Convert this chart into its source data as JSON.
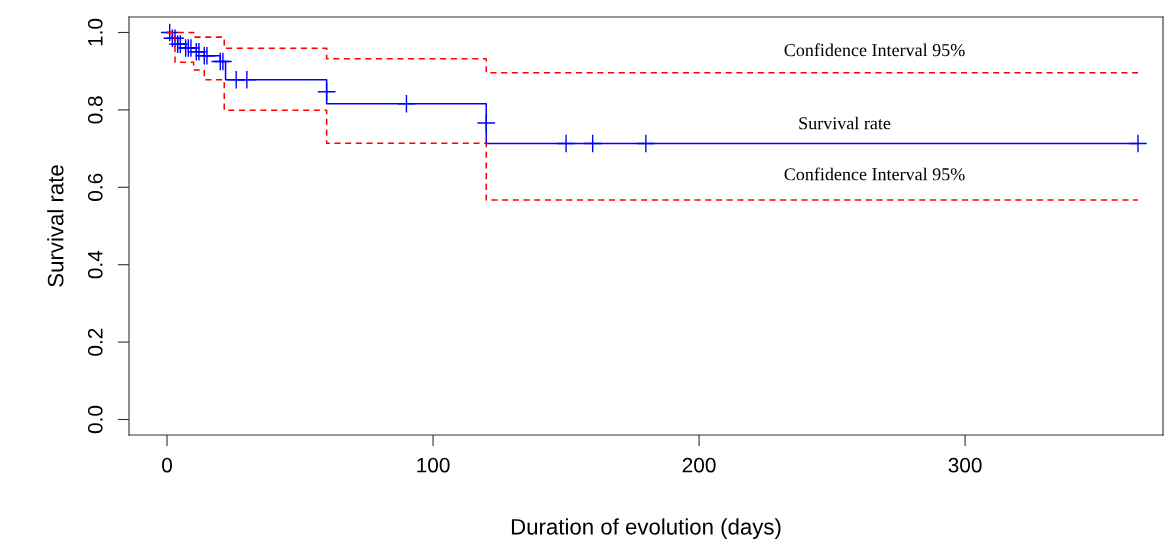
{
  "chart_data": {
    "type": "step",
    "xlabel": "Duration of evolution (days)",
    "ylabel": "Survival rate",
    "xlim": [
      -14.3,
      374.4
    ],
    "ylim": [
      -0.04,
      1.04
    ],
    "xticks": [
      0,
      100,
      200,
      300
    ],
    "yticks": [
      {
        "value": 0,
        "label": "0.0"
      },
      {
        "value": 0.2,
        "label": "0.2"
      },
      {
        "value": 0.4,
        "label": "0.4"
      },
      {
        "value": 0.6,
        "label": "0.6"
      },
      {
        "value": 0.8,
        "label": "0.8"
      },
      {
        "value": 1.0,
        "label": "1.0"
      }
    ],
    "grid": false,
    "legend": false,
    "series": [
      {
        "color": "#0000ff",
        "line_style": "solid",
        "x": [
          0,
          2,
          4,
          7,
          11,
          14,
          20,
          22,
          60,
          120,
          365
        ],
        "values": [
          1.0,
          0.985,
          0.97,
          0.96,
          0.95,
          0.94,
          0.925,
          0.878,
          0.816,
          0.713,
          0.713
        ]
      },
      {
        "color": "#ff0000",
        "line_style": "dashed",
        "x": [
          0,
          10,
          21.5,
          60,
          120,
          365
        ],
        "values": [
          1.0,
          0.988,
          0.959,
          0.932,
          0.896,
          0.896
        ]
      },
      {
        "color": "#ff0000",
        "line_style": "dashed",
        "x": [
          0,
          3,
          10,
          14,
          21.5,
          60,
          120,
          365
        ],
        "values": [
          1.0,
          0.923,
          0.903,
          0.878,
          0.799,
          0.714,
          0.567,
          0.567
        ]
      },
      {
        "type": "scatter",
        "color": "#0000ff",
        "marker": "cross",
        "x": [
          1,
          2,
          3,
          4,
          5,
          7,
          8,
          9,
          11,
          12,
          14,
          15,
          20,
          21,
          26,
          30,
          60,
          90,
          120,
          150,
          160,
          180,
          365
        ],
        "values": [
          1.0,
          0.985,
          0.985,
          0.97,
          0.97,
          0.96,
          0.96,
          0.96,
          0.95,
          0.95,
          0.94,
          0.94,
          0.925,
          0.925,
          0.878,
          0.878,
          0.847,
          0.816,
          0.766,
          0.713,
          0.713,
          0.713,
          0.713
        ]
      }
    ],
    "annotations": [
      "Confidence Interval 95%",
      "Survival rate",
      "Confidence Interval 95%"
    ]
  }
}
